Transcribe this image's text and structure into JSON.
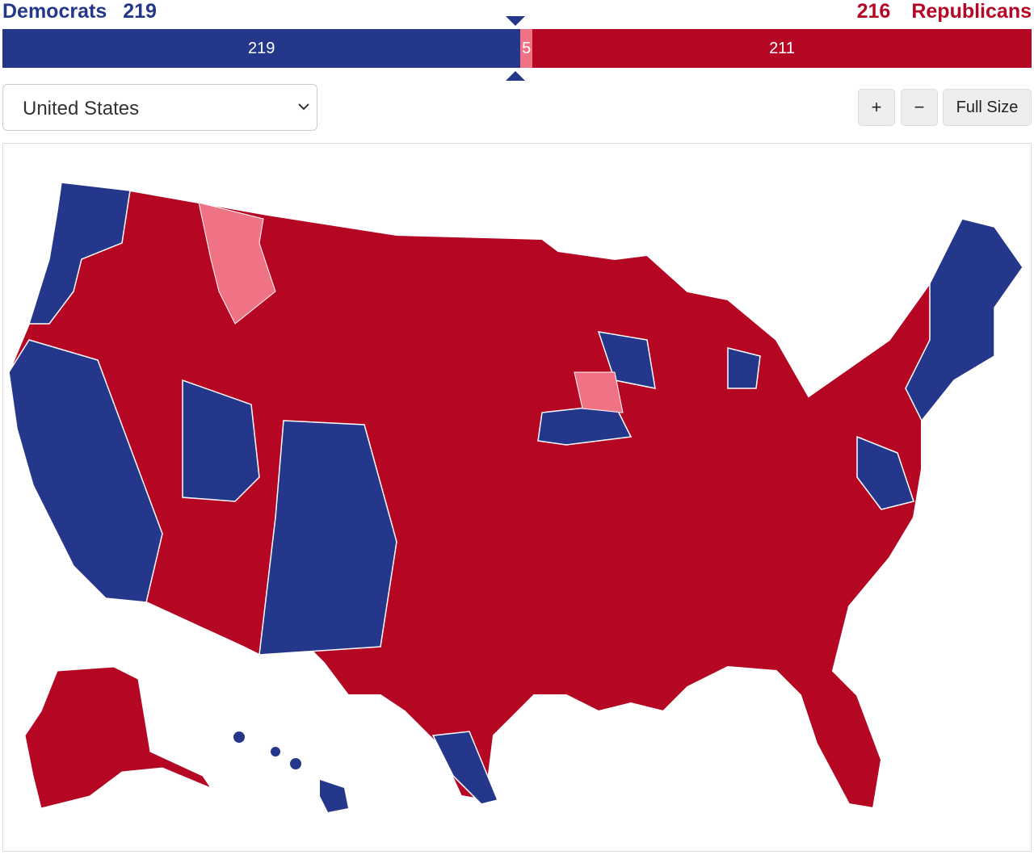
{
  "header": {
    "dem_label": "Democrats",
    "dem_total": 219,
    "rep_total": 216,
    "rep_label": "Republicans"
  },
  "seat_bar": {
    "segments": [
      {
        "value": 219,
        "color": "#25378a"
      },
      {
        "value": 5,
        "color": "#f07285"
      },
      {
        "value": 211,
        "color": "#b50624"
      }
    ]
  },
  "controls": {
    "region_select": "United States",
    "zoom_in": "+",
    "zoom_out": "−",
    "full_size": "Full Size"
  }
}
